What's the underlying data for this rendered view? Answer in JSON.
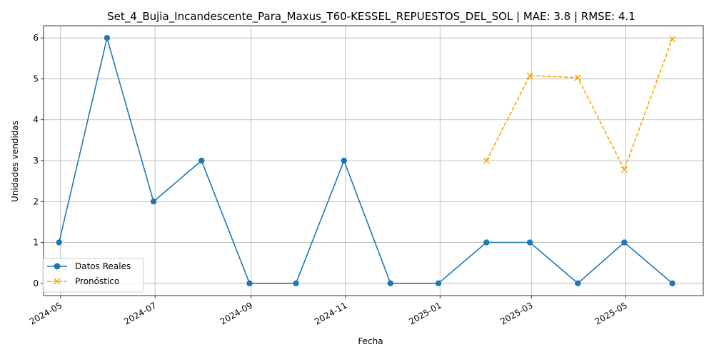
{
  "chart_data": {
    "type": "line",
    "title": "Set_4_Bujia_Incandescente_Para_Maxus_T60-KESSEL_REPUESTOS_DEL_SOL | MAE: 3.8 | RMSE: 4.1",
    "xlabel": "Fecha",
    "ylabel": "Unidades vendidas",
    "x_tick_labels": [
      "2024-05",
      "2024-07",
      "2024-09",
      "2024-11",
      "2025-01",
      "2025-03",
      "2025-05"
    ],
    "y_tick_labels": [
      "0",
      "1",
      "2",
      "3",
      "4",
      "5",
      "6"
    ],
    "ylim": [
      -0.3,
      6.3
    ],
    "xlim": [
      "2024-04-20",
      "2025-06-20"
    ],
    "grid": true,
    "legend_position": "lower-left",
    "series": [
      {
        "name": "Datos Reales",
        "color": "#1f77b4",
        "marker": "circle",
        "line_style": "solid",
        "points": [
          {
            "x": "2024-04-30",
            "y": 1
          },
          {
            "x": "2024-05-31",
            "y": 6
          },
          {
            "x": "2024-06-30",
            "y": 2
          },
          {
            "x": "2024-07-31",
            "y": 3
          },
          {
            "x": "2024-08-31",
            "y": 0
          },
          {
            "x": "2024-09-30",
            "y": 0
          },
          {
            "x": "2024-10-31",
            "y": 3
          },
          {
            "x": "2024-11-30",
            "y": 0
          },
          {
            "x": "2024-12-31",
            "y": 0
          },
          {
            "x": "2025-01-31",
            "y": 1
          },
          {
            "x": "2025-02-28",
            "y": 1
          },
          {
            "x": "2025-03-31",
            "y": 0
          },
          {
            "x": "2025-04-30",
            "y": 1
          },
          {
            "x": "2025-05-31",
            "y": 0
          }
        ]
      },
      {
        "name": "Pronóstico",
        "color": "#ffa500",
        "marker": "x",
        "line_style": "dashed",
        "points": [
          {
            "x": "2025-01-31",
            "y": 3.0
          },
          {
            "x": "2025-02-28",
            "y": 5.08
          },
          {
            "x": "2025-03-31",
            "y": 5.03
          },
          {
            "x": "2025-04-30",
            "y": 2.78
          },
          {
            "x": "2025-05-31",
            "y": 5.98
          }
        ]
      }
    ]
  }
}
